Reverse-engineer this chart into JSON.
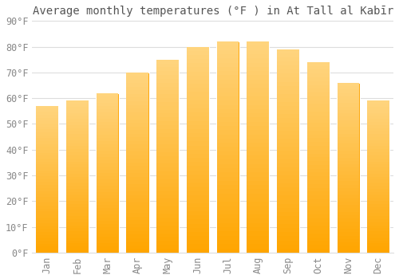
{
  "title": "Average monthly temperatures (°F ) in At Tall al Kabīr",
  "months": [
    "Jan",
    "Feb",
    "Mar",
    "Apr",
    "May",
    "Jun",
    "Jul",
    "Aug",
    "Sep",
    "Oct",
    "Nov",
    "Dec"
  ],
  "values": [
    57,
    59,
    62,
    70,
    75,
    80,
    82,
    82,
    79,
    74,
    66,
    59
  ],
  "bar_color_bottom": "#FFA500",
  "bar_color_top": "#FFD580",
  "bar_edge_color": "#E8900A",
  "background_color": "#ffffff",
  "grid_color": "#dddddd",
  "text_color": "#888888",
  "title_color": "#555555",
  "ylim": [
    0,
    90
  ],
  "yticks": [
    0,
    10,
    20,
    30,
    40,
    50,
    60,
    70,
    80,
    90
  ],
  "title_fontsize": 10,
  "tick_fontsize": 8.5,
  "bar_width": 0.75
}
